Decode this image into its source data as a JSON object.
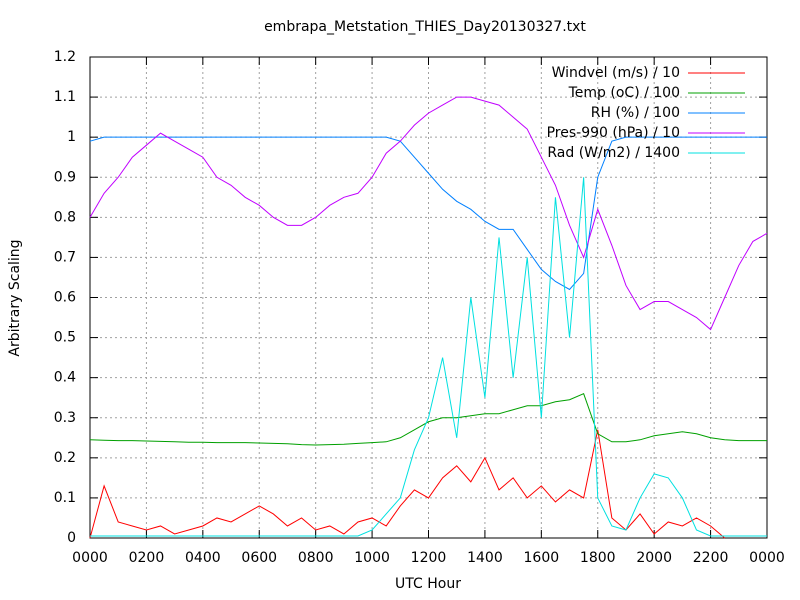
{
  "chart_data": {
    "type": "line",
    "title": "embrapa_Metstation_THIES_Day20130327.txt",
    "xlabel": "UTC Hour",
    "ylabel": "Arbitrary Scaling",
    "x": [
      0,
      0.5,
      1,
      1.5,
      2,
      2.5,
      3,
      3.5,
      4,
      4.5,
      5,
      5.5,
      6,
      6.5,
      7,
      7.5,
      8,
      8.5,
      9,
      9.5,
      10,
      10.5,
      11,
      11.5,
      12,
      12.5,
      13,
      13.5,
      14,
      14.5,
      15,
      15.5,
      16,
      16.5,
      17,
      17.5,
      18,
      18.5,
      19,
      19.5,
      20,
      20.5,
      21,
      21.5,
      22,
      22.5,
      23,
      23.5,
      24
    ],
    "xlim": [
      0,
      24
    ],
    "xticks": [
      {
        "value": 0,
        "label": "0000"
      },
      {
        "value": 2,
        "label": "0200"
      },
      {
        "value": 4,
        "label": "0400"
      },
      {
        "value": 6,
        "label": "0600"
      },
      {
        "value": 8,
        "label": "0800"
      },
      {
        "value": 10,
        "label": "1000"
      },
      {
        "value": 12,
        "label": "1200"
      },
      {
        "value": 14,
        "label": "1400"
      },
      {
        "value": 16,
        "label": "1600"
      },
      {
        "value": 18,
        "label": "1800"
      },
      {
        "value": 20,
        "label": "2000"
      },
      {
        "value": 22,
        "label": "2200"
      },
      {
        "value": 24,
        "label": "0000"
      }
    ],
    "ylim": [
      0,
      1.2
    ],
    "yticks": [
      0,
      0.1,
      0.2,
      0.3,
      0.4,
      0.5,
      0.6,
      0.7,
      0.8,
      0.9,
      1,
      1.1,
      1.2
    ],
    "grid": true,
    "legend": "top-right",
    "series": [
      {
        "name": "Windvel (m/s) / 10",
        "color": "#ff0000",
        "values": [
          0,
          0.13,
          0.04,
          0.03,
          0.02,
          0.03,
          0.01,
          0.02,
          0.03,
          0.05,
          0.04,
          0.06,
          0.08,
          0.06,
          0.03,
          0.05,
          0.02,
          0.03,
          0.01,
          0.04,
          0.05,
          0.03,
          0.08,
          0.12,
          0.1,
          0.15,
          0.18,
          0.14,
          0.2,
          0.12,
          0.15,
          0.1,
          0.13,
          0.09,
          0.12,
          0.1,
          0.27,
          0.05,
          0.02,
          0.06,
          0.01,
          0.04,
          0.03,
          0.05,
          0.03,
          0,
          null,
          null,
          null
        ]
      },
      {
        "name": "Temp (oC) / 100",
        "color": "#00a000",
        "values": [
          0.245,
          0.244,
          0.243,
          0.243,
          0.242,
          0.241,
          0.24,
          0.239,
          0.239,
          0.238,
          0.238,
          0.238,
          0.237,
          0.236,
          0.235,
          0.233,
          0.232,
          0.233,
          0.234,
          0.236,
          0.238,
          0.24,
          0.25,
          0.27,
          0.29,
          0.3,
          0.3,
          0.305,
          0.31,
          0.31,
          0.32,
          0.33,
          0.33,
          0.34,
          0.345,
          0.36,
          0.26,
          0.24,
          0.24,
          0.245,
          0.255,
          0.26,
          0.265,
          0.26,
          0.25,
          0.245,
          0.243,
          0.243,
          0.243
        ]
      },
      {
        "name": "RH (%) / 100",
        "color": "#0080ff",
        "values": [
          0.99,
          1,
          1,
          1,
          1,
          1,
          1,
          1,
          1,
          1,
          1,
          1,
          1,
          1,
          1,
          1,
          1,
          1,
          1,
          1,
          1,
          1,
          0.99,
          0.95,
          0.91,
          0.87,
          0.84,
          0.82,
          0.79,
          0.77,
          0.77,
          0.72,
          0.67,
          0.64,
          0.62,
          0.66,
          0.9,
          0.99,
          1,
          1,
          1,
          1,
          1,
          1,
          1,
          1,
          1,
          1,
          1
        ]
      },
      {
        "name": "Pres-990 (hPa) / 10",
        "color": "#c000ff",
        "values": [
          0.8,
          0.86,
          0.9,
          0.95,
          0.98,
          1.01,
          0.99,
          0.97,
          0.95,
          0.9,
          0.88,
          0.85,
          0.83,
          0.8,
          0.78,
          0.78,
          0.8,
          0.83,
          0.85,
          0.86,
          0.9,
          0.96,
          0.99,
          1.03,
          1.06,
          1.08,
          1.1,
          1.1,
          1.09,
          1.08,
          1.05,
          1.02,
          0.95,
          0.88,
          0.78,
          0.7,
          0.82,
          0.73,
          0.63,
          0.57,
          0.59,
          0.59,
          0.57,
          0.55,
          0.52,
          0.6,
          0.68,
          0.74,
          0.76
        ]
      },
      {
        "name": "Rad (W/m2) / 1400",
        "color": "#00e0e0",
        "values": [
          0.005,
          0.005,
          0.005,
          0.005,
          0.005,
          0.005,
          0.005,
          0.005,
          0.005,
          0.005,
          0.005,
          0.005,
          0.005,
          0.005,
          0.005,
          0.005,
          0.005,
          0.005,
          0.005,
          0.005,
          0.02,
          0.06,
          0.1,
          0.22,
          0.3,
          0.45,
          0.25,
          0.6,
          0.35,
          0.75,
          0.4,
          0.7,
          0.3,
          0.85,
          0.5,
          0.9,
          0.1,
          0.03,
          0.02,
          0.1,
          0.16,
          0.15,
          0.1,
          0.02,
          0.005,
          0.005,
          0.005,
          0.005,
          0.005
        ]
      }
    ]
  }
}
